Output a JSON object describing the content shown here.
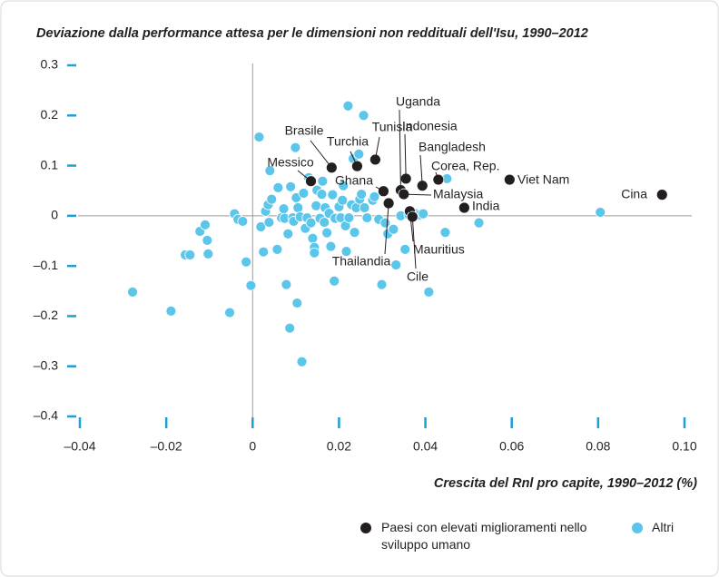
{
  "chart_data": {
    "type": "scatter",
    "title": "Deviazione dalla performance attesa per le dimensioni non reddituali dell'Isu, 1990–2012",
    "x_label": "Crescita del Rnl pro capite, 1990–2012 (%)",
    "xlim": [
      -0.04,
      0.1
    ],
    "ylim": [
      -0.4,
      0.3
    ],
    "xticks": [
      {
        "value": -0.04,
        "label": "–0.04"
      },
      {
        "value": -0.02,
        "label": "–0.02"
      },
      0,
      0.02,
      0.04,
      0.06,
      0.08,
      {
        "value": 0.1,
        "label": "0.10"
      }
    ],
    "yticks": [
      {
        "value": -0.4,
        "label": "–0.4"
      },
      {
        "value": -0.3,
        "label": "–0.3"
      },
      {
        "value": -0.2,
        "label": "–0.2"
      },
      {
        "value": -0.1,
        "label": "–0.1"
      },
      0,
      0.1,
      0.2,
      0.3
    ],
    "grid": false,
    "series": [
      {
        "name": "Paesi con elevati miglioramenti nello sviluppo umano",
        "color": "#231f20",
        "labels": [
          "Cina",
          "Viet Nam",
          "India",
          "Corea, Rep.",
          "Bangladesh",
          "Indonesia",
          "Uganda",
          "Malaysia",
          "Tunisia",
          "Turchia",
          "Brasile",
          "Messico",
          "Ghana",
          "Thailandia",
          "Mauritius",
          "Cile"
        ],
        "x": [
          0.0948,
          0.0595,
          0.049,
          0.043,
          0.0393,
          0.0355,
          0.0343,
          0.035,
          0.0284,
          0.0242,
          0.0183,
          0.0135,
          0.0303,
          0.0315,
          0.0364,
          0.037
        ],
        "values": [
          0.042,
          0.072,
          0.016,
          0.072,
          0.06,
          0.074,
          0.051,
          0.043,
          0.112,
          0.099,
          0.096,
          0.069,
          0.049,
          0.025,
          0.009,
          -0.002
        ]
      },
      {
        "name": "Altri",
        "color": "#5bc5ea",
        "x": [
          -0.0278,
          -0.0189,
          -0.0156,
          -0.0145,
          -0.0122,
          -0.011,
          -0.0105,
          -0.0103,
          -0.0053,
          -0.0042,
          -0.0034,
          -0.0023,
          -0.0015,
          -0.0004,
          0.0015,
          0.0019,
          0.0025,
          0.003,
          0.0036,
          0.0038,
          0.004,
          0.0044,
          0.0057,
          0.0059,
          0.0067,
          0.0072,
          0.0074,
          0.0078,
          0.0082,
          0.0086,
          0.0088,
          0.0093,
          0.0095,
          0.0099,
          0.0101,
          0.0103,
          0.0105,
          0.011,
          0.0114,
          0.0118,
          0.0122,
          0.0126,
          0.013,
          0.0135,
          0.0139,
          0.0143,
          0.0143,
          0.0147,
          0.0149,
          0.0156,
          0.016,
          0.0162,
          0.0166,
          0.0168,
          0.0172,
          0.0177,
          0.0181,
          0.0185,
          0.0189,
          0.0191,
          0.02,
          0.0204,
          0.0208,
          0.021,
          0.0215,
          0.0217,
          0.0221,
          0.0223,
          0.0229,
          0.0233,
          0.0236,
          0.024,
          0.0246,
          0.0248,
          0.0252,
          0.0257,
          0.0259,
          0.0265,
          0.0278,
          0.0282,
          0.0292,
          0.0299,
          0.0307,
          0.0313,
          0.0326,
          0.0332,
          0.0343,
          0.0353,
          0.0362,
          0.0379,
          0.0387,
          0.0395,
          0.0408,
          0.0446,
          0.045,
          0.0524,
          0.0805
        ],
        "values": [
          -0.152,
          -0.19,
          -0.078,
          -0.078,
          -0.031,
          -0.018,
          -0.049,
          -0.076,
          -0.193,
          0.004,
          -0.007,
          -0.011,
          -0.092,
          -0.139,
          0.157,
          -0.022,
          -0.072,
          0.009,
          0.022,
          -0.013,
          0.09,
          0.033,
          -0.067,
          0.056,
          -0.004,
          0.014,
          -0.005,
          -0.137,
          -0.036,
          -0.224,
          0.058,
          -0.004,
          -0.011,
          0.136,
          0.036,
          -0.174,
          0.016,
          -0.002,
          -0.291,
          0.045,
          -0.025,
          -0.004,
          0.076,
          -0.014,
          -0.045,
          -0.063,
          -0.074,
          0.02,
          0.051,
          -0.005,
          0.043,
          0.069,
          -0.013,
          0.016,
          -0.034,
          0.005,
          -0.061,
          0.042,
          -0.13,
          -0.005,
          0.018,
          -0.004,
          0.031,
          0.06,
          -0.02,
          -0.071,
          0.219,
          -0.004,
          0.022,
          0.114,
          -0.033,
          0.016,
          0.123,
          0.033,
          0.043,
          0.2,
          0.016,
          -0.004,
          0.031,
          0.038,
          -0.007,
          -0.137,
          -0.014,
          -0.036,
          -0.027,
          -0.098,
          0.0,
          -0.067,
          0.002,
          0.004,
          0.002,
          0.004,
          -0.152,
          -0.033,
          0.074,
          -0.014,
          0.007
        ]
      }
    ]
  }
}
